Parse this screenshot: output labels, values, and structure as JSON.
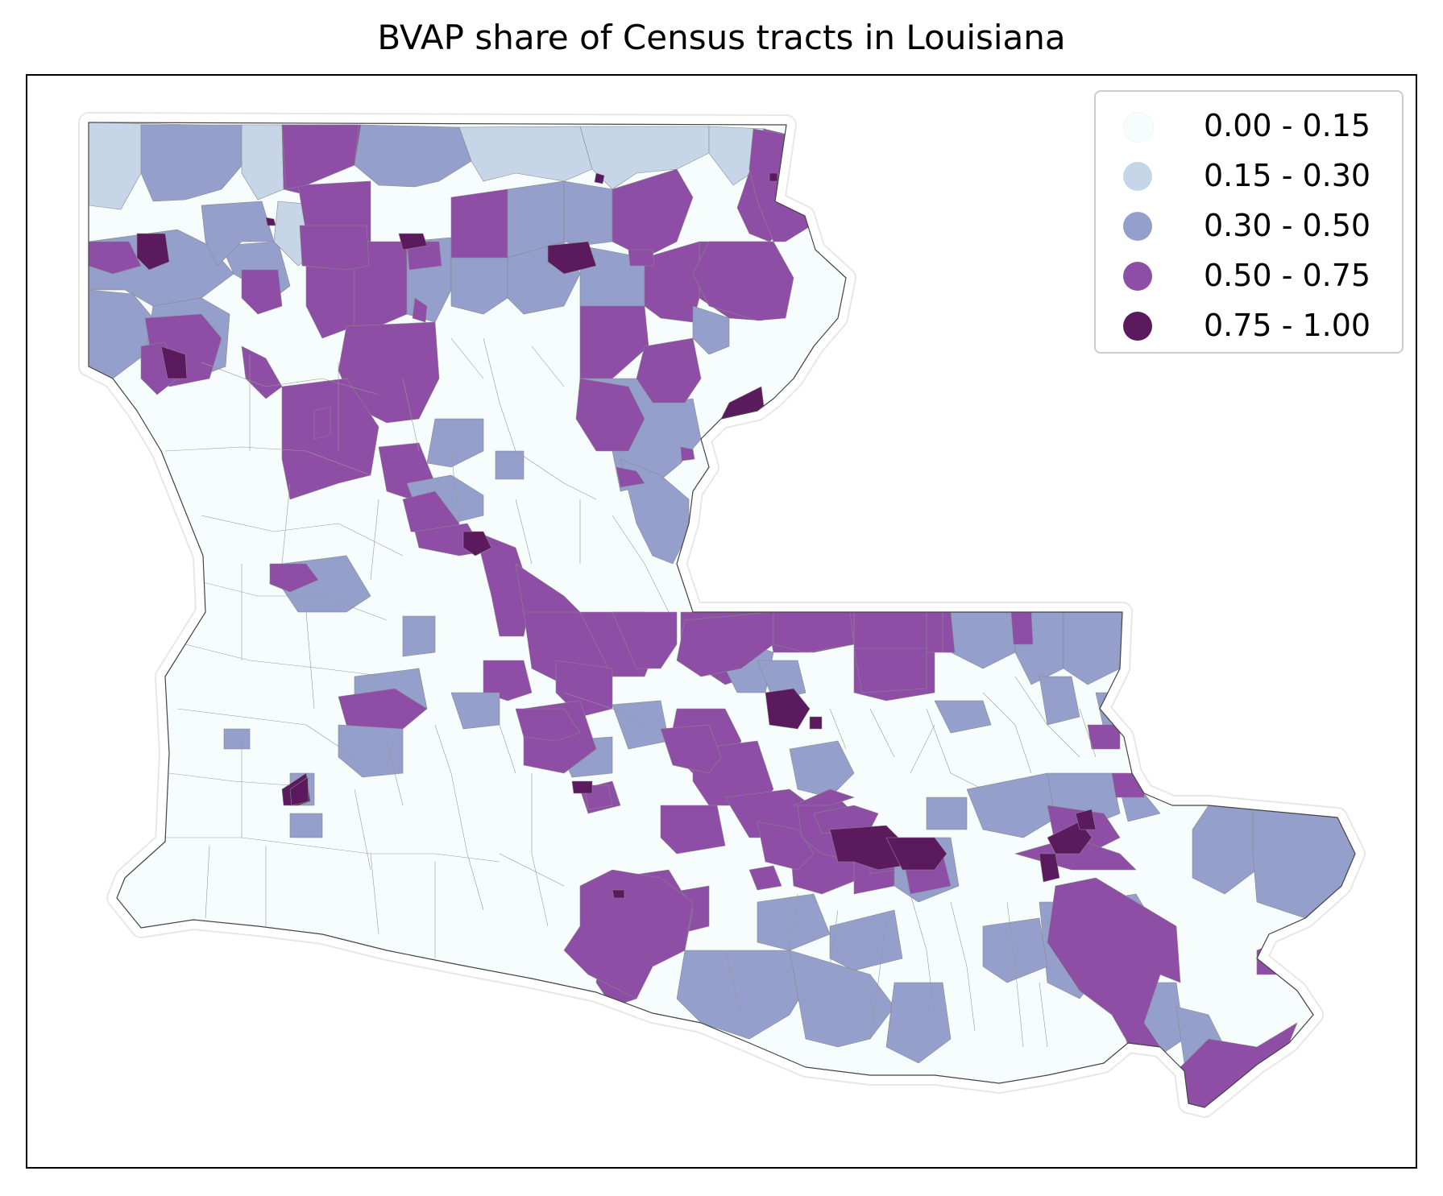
{
  "title": "BVAP share of Census tracts in Louisiana",
  "legend": {
    "items": [
      {
        "label": "0.00 - 0.15",
        "color": "#f7fcfd"
      },
      {
        "label": "0.15 - 0.30",
        "color": "#c6d6e8"
      },
      {
        "label": "0.30 - 0.50",
        "color": "#959fcb"
      },
      {
        "label": "0.50 - 0.75",
        "color": "#8e4ea6"
      },
      {
        "label": "0.75 - 1.00",
        "color": "#5c1a5e"
      }
    ]
  },
  "map": {
    "region": "Louisiana",
    "feature": "Census tracts",
    "variable": "BVAP share",
    "classification": "five classes",
    "boundary_color": "#444444",
    "outline_color": "#bbbbbb"
  }
}
